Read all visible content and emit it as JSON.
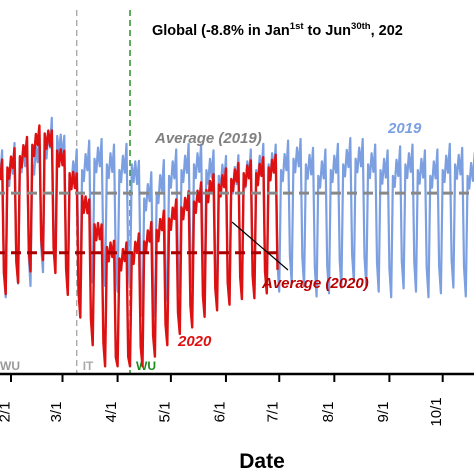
{
  "chart_data": {
    "type": "line",
    "title": {
      "prefix": "Global (-8.8% in Jan",
      "sup1": "1st",
      "mid": " to Jun",
      "sup2": "30th",
      "suffix": ", 202"
    },
    "xlabel": "Date",
    "ylabel": "",
    "x_ticks": [
      "2/1",
      "3/1",
      "4/1",
      "5/1",
      "6/1",
      "7/1",
      "8/1",
      "9/1",
      "10/1"
    ],
    "x_range": [
      "2020-01-23",
      "2020-10-22"
    ],
    "y_range": [
      0,
      100
    ],
    "grid": false,
    "series": [
      {
        "name": "2019",
        "color": "#7b9fe0",
        "x_start": "2020-01-23",
        "x_end": "2020-10-22",
        "weekly_pattern": {
          "weekday_base": 74,
          "weekend_dip": [
            34,
            44
          ],
          "weekday_shape": [
            18,
            8,
            28,
            14,
            36
          ]
        },
        "weekly_level": [
          72,
          70,
          76,
          74,
          80,
          84,
          70,
          72,
          76,
          74,
          72,
          74,
          62,
          64,
          70,
          72,
          74,
          72,
          70,
          68,
          70,
          72,
          74,
          72,
          76,
          74,
          70,
          72,
          74,
          76,
          74,
          72,
          70,
          74,
          72,
          70,
          72,
          74,
          70
        ]
      },
      {
        "name": "2020",
        "color": "#dd1111",
        "x_start": "2020-01-23",
        "x_end": "2020-06-30",
        "weekly_pattern": {
          "weekday_base": 64,
          "weekend_dip": [
            36,
            44
          ],
          "weekday_shape": [
            20,
            10,
            26,
            16,
            30
          ]
        },
        "weekly_level": [
          68,
          72,
          76,
          80,
          84,
          78,
          70,
          62,
          52,
          44,
          40,
          42,
          46,
          50,
          54,
          58,
          60,
          64,
          66,
          68,
          70,
          70,
          72
        ]
      }
    ],
    "reference_lines": [
      {
        "label": "Average (2019)",
        "value": 63,
        "color": "#888888",
        "style": "dashed",
        "x_start": "2020-01-23",
        "x_end": "2020-10-22"
      },
      {
        "label": "Average (2020)",
        "value": 42,
        "color": "#aa0000",
        "style": "dashed",
        "x_start": "2020-01-23",
        "x_end": "2020-06-30"
      }
    ],
    "events": [
      {
        "label": "WU",
        "date": "2020-01-23",
        "color": "#999999"
      },
      {
        "label": "IT",
        "date": "2020-03-09",
        "color": "#aaaaaa"
      },
      {
        "label": "WU",
        "date": "2020-04-08",
        "color": "#1a8a1a"
      }
    ],
    "annotations": [
      {
        "text": "2019",
        "series": "2019"
      },
      {
        "text": "2020",
        "series": "2020"
      },
      {
        "text": "Average (2020)",
        "series": "Average (2020)"
      }
    ]
  }
}
